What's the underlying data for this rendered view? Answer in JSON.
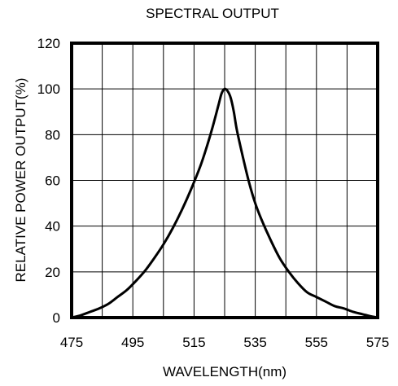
{
  "chart_data": {
    "type": "line",
    "title": "SPECTRAL OUTPUT",
    "xlabel": "WAVELENGTH(nm)",
    "ylabel": "RELATIVE POWER OUTPUT(%)",
    "xlim": [
      475,
      575
    ],
    "ylim": [
      0,
      120
    ],
    "x_ticks": [
      475,
      495,
      515,
      535,
      555,
      575
    ],
    "y_ticks": [
      0,
      20,
      40,
      60,
      80,
      100,
      120
    ],
    "x_gridlines": [
      475,
      485,
      495,
      505,
      515,
      525,
      535,
      545,
      555,
      565,
      575
    ],
    "y_gridlines": [
      0,
      20,
      40,
      60,
      80,
      100,
      120
    ],
    "grid": true,
    "series": [
      {
        "color": "#000000",
        "x": [
          475,
          478,
          481,
          484,
          487,
          490,
          493,
          496,
          499,
          502,
          505,
          508,
          511,
          514,
          517,
          519,
          521,
          523,
          524,
          525,
          526,
          527,
          528,
          529,
          531,
          533,
          535,
          537,
          540,
          543,
          546,
          549,
          552,
          555,
          558,
          561,
          564,
          567,
          570,
          573,
          575
        ],
        "y": [
          0,
          1,
          2.5,
          4,
          6,
          9,
          12,
          16,
          20.5,
          26,
          32,
          39,
          47,
          56,
          66,
          74,
          83,
          93,
          98,
          100,
          99,
          96,
          90,
          82,
          70,
          59,
          50,
          43,
          34,
          26,
          20,
          15,
          11,
          9,
          7,
          5,
          4,
          2.5,
          1.5,
          0.5,
          0
        ]
      }
    ]
  }
}
